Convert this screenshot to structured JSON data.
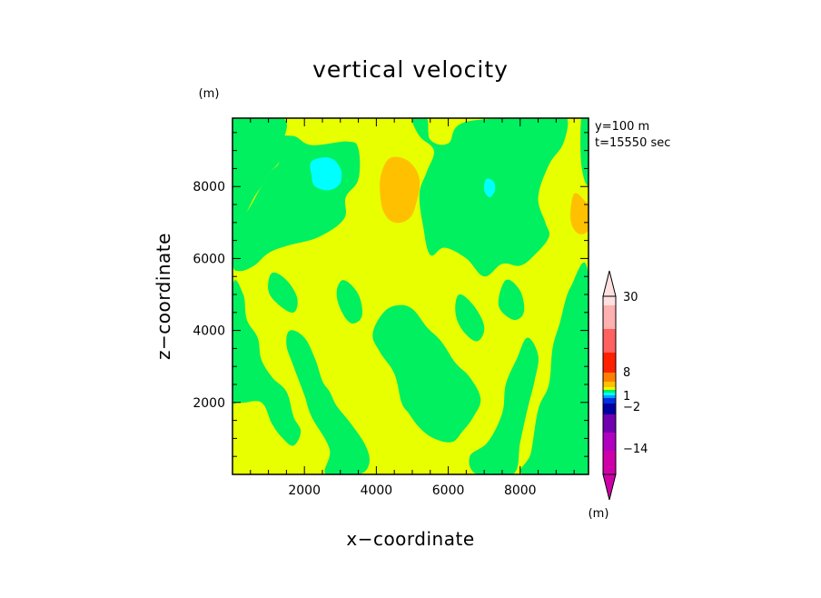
{
  "chart_data": {
    "type": "heatmap",
    "title": "vertical velocity",
    "xlabel": "x−coordinate",
    "ylabel": "z−coordinate",
    "x_unit": "(m)",
    "y_unit": "(m)",
    "xlim": [
      0,
      9900
    ],
    "ylim": [
      0,
      9900
    ],
    "x_ticks": [
      2000,
      4000,
      6000,
      8000
    ],
    "x_tick_labels": [
      "2000",
      "4000",
      "6000",
      "8000"
    ],
    "y_ticks": [
      2000,
      4000,
      6000,
      8000
    ],
    "y_tick_labels": [
      "2000",
      "4000",
      "6000",
      "8000"
    ],
    "annotations": [
      "y=100 m",
      "t=15550 sec"
    ],
    "colorbar": {
      "unit": "(m)",
      "labels": [
        {
          "text": "30",
          "value": 30
        },
        {
          "text": "8",
          "value": 8
        },
        {
          "text": "1",
          "value": 1
        },
        {
          "text": "−2",
          "value": -2
        },
        {
          "text": "−14",
          "value": -14
        }
      ],
      "colors": [
        "#d000a8",
        "#b000c0",
        "#7000b0",
        "#0000a0",
        "#0030e0",
        "#00a0ff",
        "#00ffff",
        "#00f060",
        "#e8ff00",
        "#ffc000",
        "#ff8000",
        "#ff2000",
        "#ff6060",
        "#ffb0b0",
        "#ffe0e0"
      ]
    },
    "regions": [
      {
        "color": "green",
        "level": "-1 to 0",
        "desc": "upper-left block",
        "points": [
          [
            0,
            9900
          ],
          [
            1400,
            9900
          ],
          [
            1400,
            9200
          ],
          [
            1300,
            8700
          ],
          [
            1050,
            8400
          ],
          [
            800,
            8000
          ],
          [
            600,
            7700
          ],
          [
            400,
            7300
          ],
          [
            250,
            7000
          ],
          [
            0,
            6900
          ]
        ]
      },
      {
        "color": "green",
        "level": "-1 to 0",
        "desc": "main upper green",
        "points": [
          [
            1300,
            8700
          ],
          [
            1200,
            9300
          ],
          [
            1700,
            9400
          ],
          [
            2200,
            9150
          ],
          [
            3200,
            9250
          ],
          [
            3500,
            9050
          ],
          [
            3500,
            8200
          ],
          [
            3150,
            7700
          ],
          [
            3100,
            7100
          ],
          [
            2400,
            6600
          ],
          [
            1500,
            6350
          ],
          [
            1000,
            6150
          ],
          [
            600,
            5800
          ],
          [
            200,
            5650
          ],
          [
            0,
            5850
          ],
          [
            0,
            6900
          ],
          [
            400,
            7300
          ],
          [
            800,
            8000
          ],
          [
            1050,
            8400
          ]
        ]
      },
      {
        "color": "green",
        "level": "-1 to 0",
        "desc": "upper middle green",
        "points": [
          [
            5000,
            9900
          ],
          [
            5400,
            9900
          ],
          [
            5500,
            9300
          ],
          [
            6000,
            9200
          ],
          [
            6500,
            9800
          ],
          [
            8800,
            9900
          ],
          [
            9300,
            9900
          ],
          [
            9200,
            9200
          ],
          [
            8800,
            8600
          ],
          [
            8500,
            7700
          ],
          [
            8700,
            7000
          ],
          [
            8800,
            6600
          ],
          [
            8400,
            6100
          ],
          [
            8000,
            5800
          ],
          [
            7500,
            5850
          ],
          [
            7000,
            5500
          ],
          [
            6500,
            6000
          ],
          [
            5900,
            6300
          ],
          [
            5500,
            6100
          ],
          [
            5300,
            6900
          ],
          [
            5200,
            7800
          ],
          [
            5400,
            8400
          ],
          [
            5600,
            9000
          ],
          [
            5200,
            9400
          ]
        ]
      },
      {
        "color": "green",
        "level": "-1 to 0",
        "desc": "right upper strip",
        "points": [
          [
            9700,
            9900
          ],
          [
            9900,
            9900
          ],
          [
            9900,
            8100
          ],
          [
            9700,
            8600
          ]
        ]
      },
      {
        "color": "green",
        "level": "-1 to 0",
        "desc": "right lower band",
        "points": [
          [
            9900,
            5500
          ],
          [
            9400,
            5200
          ],
          [
            9100,
            4200
          ],
          [
            8900,
            3500
          ],
          [
            8800,
            2500
          ],
          [
            8500,
            1800
          ],
          [
            8300,
            600
          ],
          [
            8100,
            0
          ],
          [
            9900,
            0
          ]
        ]
      },
      {
        "color": "green",
        "level": "-1 to 0",
        "desc": "left lower band",
        "points": [
          [
            0,
            5200
          ],
          [
            300,
            5000
          ],
          [
            400,
            4300
          ],
          [
            700,
            3800
          ],
          [
            800,
            3200
          ],
          [
            1100,
            2700
          ],
          [
            1500,
            2300
          ],
          [
            1700,
            1600
          ],
          [
            1900,
            1200
          ],
          [
            1700,
            800
          ],
          [
            1400,
            1000
          ],
          [
            1100,
            1400
          ],
          [
            800,
            2000
          ],
          [
            200,
            2000
          ],
          [
            0,
            2300
          ]
        ]
      },
      {
        "color": "green",
        "level": "-1 to 0",
        "desc": "lower-middle band",
        "points": [
          [
            1600,
            4000
          ],
          [
            2000,
            3800
          ],
          [
            2300,
            3200
          ],
          [
            2500,
            2600
          ],
          [
            2700,
            2300
          ],
          [
            2900,
            1900
          ],
          [
            3300,
            1400
          ],
          [
            3700,
            800
          ],
          [
            3800,
            300
          ],
          [
            3500,
            0
          ],
          [
            2600,
            0
          ],
          [
            2700,
            700
          ],
          [
            2200,
            1600
          ],
          [
            2000,
            2200
          ],
          [
            1700,
            3000
          ],
          [
            1500,
            3600
          ]
        ]
      },
      {
        "color": "green",
        "level": "-1 to 0",
        "desc": "center green",
        "points": [
          [
            3900,
            3900
          ],
          [
            4100,
            3400
          ],
          [
            4500,
            2800
          ],
          [
            4700,
            2000
          ],
          [
            4900,
            1700
          ],
          [
            5200,
            1300
          ],
          [
            5600,
            1000
          ],
          [
            6100,
            900
          ],
          [
            6400,
            1200
          ],
          [
            6700,
            1600
          ],
          [
            6900,
            2100
          ],
          [
            6600,
            2700
          ],
          [
            6200,
            3100
          ],
          [
            5800,
            3700
          ],
          [
            5400,
            4100
          ],
          [
            5000,
            4600
          ],
          [
            4600,
            4700
          ],
          [
            4200,
            4500
          ]
        ]
      },
      {
        "color": "green",
        "level": "-1 to 0",
        "desc": "bottom-right green",
        "points": [
          [
            6600,
            500
          ],
          [
            7100,
            900
          ],
          [
            7500,
            1700
          ],
          [
            7600,
            2500
          ],
          [
            7900,
            3200
          ],
          [
            8200,
            3800
          ],
          [
            8500,
            3300
          ],
          [
            8400,
            2600
          ],
          [
            8200,
            1800
          ],
          [
            8000,
            900
          ],
          [
            7800,
            0
          ],
          [
            6800,
            0
          ]
        ]
      },
      {
        "color": "green",
        "level": "-1 to 0",
        "desc": "small left patch",
        "points": [
          [
            1100,
            5600
          ],
          [
            1500,
            5400
          ],
          [
            1800,
            4900
          ],
          [
            1700,
            4500
          ],
          [
            1300,
            4700
          ],
          [
            1000,
            5100
          ]
        ]
      },
      {
        "color": "green",
        "level": "-1 to 0",
        "desc": "small mid patch",
        "points": [
          [
            3100,
            5400
          ],
          [
            3500,
            5000
          ],
          [
            3600,
            4400
          ],
          [
            3300,
            4200
          ],
          [
            3000,
            4600
          ],
          [
            2900,
            5100
          ]
        ]
      },
      {
        "color": "green",
        "level": "-1 to 0",
        "desc": "small right patch",
        "points": [
          [
            6300,
            5000
          ],
          [
            6700,
            4700
          ],
          [
            7000,
            4100
          ],
          [
            6800,
            3700
          ],
          [
            6400,
            4000
          ],
          [
            6200,
            4500
          ]
        ]
      },
      {
        "color": "green",
        "level": "-1 to 0",
        "desc": "small right-mid patch",
        "points": [
          [
            7600,
            5400
          ],
          [
            8000,
            5100
          ],
          [
            8100,
            4500
          ],
          [
            7800,
            4300
          ],
          [
            7400,
            4700
          ]
        ]
      },
      {
        "color": "orange",
        "level": "1 to 2",
        "desc": "upper center orange",
        "points": [
          [
            4400,
            8800
          ],
          [
            4900,
            8700
          ],
          [
            5200,
            8200
          ],
          [
            5100,
            7500
          ],
          [
            4900,
            7100
          ],
          [
            4500,
            7000
          ],
          [
            4200,
            7300
          ],
          [
            4100,
            7900
          ],
          [
            4150,
            8400
          ]
        ]
      },
      {
        "color": "orange",
        "level": "1 to 2",
        "desc": "right edge orange",
        "points": [
          [
            9500,
            7800
          ],
          [
            9800,
            7600
          ],
          [
            9900,
            7400
          ],
          [
            9900,
            6800
          ],
          [
            9600,
            6700
          ],
          [
            9400,
            7100
          ]
        ]
      },
      {
        "color": "cyan",
        "level": "-2 to -1",
        "desc": "upper-left cyan",
        "points": [
          [
            2200,
            8700
          ],
          [
            2700,
            8800
          ],
          [
            3000,
            8500
          ],
          [
            3000,
            8100
          ],
          [
            2700,
            7900
          ],
          [
            2300,
            8000
          ],
          [
            2200,
            8300
          ]
        ]
      },
      {
        "color": "cyan",
        "level": "-2 to -1",
        "desc": "small cyan",
        "points": [
          [
            7050,
            8200
          ],
          [
            7250,
            8150
          ],
          [
            7300,
            7900
          ],
          [
            7150,
            7700
          ],
          [
            7000,
            7900
          ]
        ]
      }
    ]
  }
}
